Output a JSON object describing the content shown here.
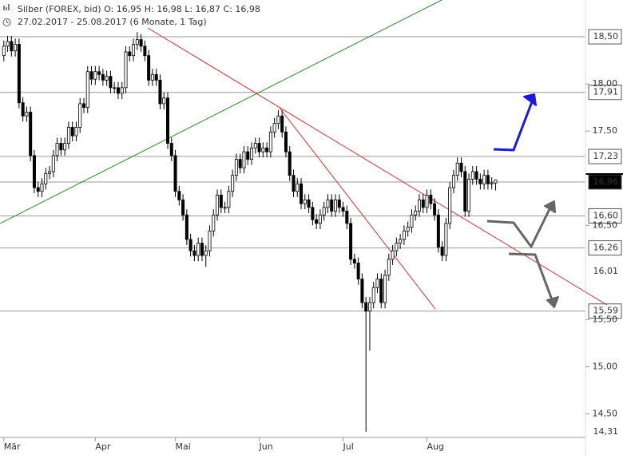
{
  "chart_data": {
    "type": "candlestick",
    "header": {
      "title": "Silber (FOREX, bid)  O: 16,95  H: 16,98  L: 16,87  C: 16,98",
      "period": "27.02.2017 - 25.08.2017   (6 Monate, 1 Tag)"
    },
    "xlim": [
      -1,
      131
    ],
    "ylim": [
      14.25,
      18.89
    ],
    "xticks": [
      {
        "value": 0,
        "label": "Mär"
      },
      {
        "value": 24,
        "label": "Apr"
      },
      {
        "value": 45,
        "label": "Mai"
      },
      {
        "value": 67,
        "label": "Jun"
      },
      {
        "value": 89,
        "label": "Jul"
      },
      {
        "value": 111,
        "label": "Aug"
      }
    ],
    "yticks": [
      {
        "value": 18,
        "label": "18,00"
      },
      {
        "value": 17.5,
        "label": "17,50"
      },
      {
        "value": 16.5,
        "label": "16,50"
      },
      {
        "value": 15.5,
        "label": "15,50"
      },
      {
        "value": 15,
        "label": "15,00"
      },
      {
        "value": 14.5,
        "label": "14,50"
      }
    ],
    "levels": [
      {
        "value": 18.5,
        "label": "18,50",
        "line": true
      },
      {
        "value": 17.91,
        "label": "17,91",
        "line": true
      },
      {
        "value": 17.23,
        "label": "17,23",
        "line": true
      },
      {
        "value": 16.96,
        "label": "16,96",
        "line": true,
        "highlight": true
      },
      {
        "value": 16.6,
        "label": "16,60",
        "line": true
      },
      {
        "value": 16.26,
        "label": "16,26",
        "line": true
      },
      {
        "value": 16.01,
        "label": "16,01",
        "line": false
      },
      {
        "value": 15.59,
        "label": "15,59",
        "line": true
      },
      {
        "value": 14.31,
        "label": "14,31",
        "line": false
      }
    ],
    "up_color": "#ffffff",
    "down_color": "#000000",
    "wick_color": "#000000",
    "open": [
      18.3,
      18.4,
      18.45,
      18.35,
      18.42,
      17.8,
      17.66,
      17.7,
      17.24,
      16.9,
      16.86,
      16.94,
      17.05,
      17.07,
      17.24,
      17.37,
      17.3,
      17.37,
      17.54,
      17.45,
      17.54,
      17.79,
      17.75,
      18.13,
      18.05,
      18.13,
      18.1,
      18.04,
      18.08,
      17.96,
      17.96,
      17.9,
      17.96,
      18.34,
      18.3,
      18.42,
      18.47,
      18.4,
      18.3,
      18.04,
      18.1,
      18.04,
      17.79,
      17.85,
      17.37,
      17.24,
      16.86,
      16.77,
      16.61,
      16.35,
      16.23,
      16.18,
      16.31,
      16.18,
      16.23,
      16.44,
      16.61,
      16.82,
      16.69,
      16.69,
      16.86,
      17.03,
      17.2,
      17.11,
      17.28,
      17.2,
      17.32,
      17.37,
      17.28,
      17.32,
      17.28,
      17.49,
      17.58,
      17.66,
      17.49,
      17.28,
      17.03,
      16.86,
      16.94,
      16.73,
      16.77,
      16.69,
      16.56,
      16.52,
      16.61,
      16.69,
      16.77,
      16.65,
      16.77,
      16.69,
      16.65,
      16.52,
      16.14,
      16.1,
      15.93,
      15.68,
      15.59,
      15.68,
      15.84,
      15.93,
      15.68,
      15.97,
      16.14,
      16.23,
      16.31,
      16.35,
      16.44,
      16.48,
      16.61,
      16.65,
      16.77,
      16.69,
      16.82,
      16.73,
      16.61,
      16.27,
      16.18,
      16.52,
      16.9,
      17.03,
      17.16,
      17.07,
      16.65,
      16.99,
      17.07,
      16.99,
      16.94,
      17.03,
      16.94,
      16.95
    ],
    "high": [
      18.46,
      18.51,
      18.51,
      18.48,
      18.48,
      17.86,
      17.76,
      17.76,
      17.3,
      16.96,
      17.0,
      17.11,
      17.13,
      17.3,
      17.43,
      17.43,
      17.43,
      17.6,
      17.6,
      17.6,
      17.85,
      17.85,
      18.19,
      18.19,
      18.19,
      18.19,
      18.16,
      18.14,
      18.14,
      18.02,
      18.02,
      18.02,
      18.4,
      18.4,
      18.48,
      18.55,
      18.53,
      18.46,
      18.36,
      18.16,
      18.16,
      18.1,
      17.91,
      17.91,
      17.43,
      17.3,
      16.92,
      16.83,
      16.67,
      16.41,
      16.29,
      16.37,
      16.37,
      16.29,
      16.5,
      16.67,
      16.88,
      16.88,
      16.75,
      16.92,
      17.09,
      17.26,
      17.26,
      17.34,
      17.34,
      17.38,
      17.43,
      17.43,
      17.38,
      17.38,
      17.55,
      17.64,
      17.72,
      17.72,
      17.55,
      17.34,
      17.09,
      17.0,
      17.0,
      16.83,
      16.83,
      16.75,
      16.62,
      16.67,
      16.75,
      16.83,
      16.83,
      16.83,
      16.83,
      16.75,
      16.71,
      16.58,
      16.2,
      16.16,
      15.99,
      15.74,
      15.74,
      15.9,
      15.99,
      15.99,
      16.03,
      16.2,
      16.29,
      16.37,
      16.41,
      16.5,
      16.54,
      16.67,
      16.71,
      16.83,
      16.83,
      16.88,
      16.88,
      16.79,
      16.67,
      16.33,
      16.58,
      16.96,
      17.09,
      17.22,
      17.22,
      17.13,
      17.05,
      17.13,
      17.13,
      17.05,
      17.09,
      17.09,
      17.01,
      16.98
    ],
    "low": [
      18.24,
      18.34,
      18.29,
      18.29,
      17.74,
      17.6,
      17.6,
      17.18,
      16.84,
      16.8,
      16.8,
      16.88,
      16.99,
      17.01,
      17.18,
      17.24,
      17.24,
      17.31,
      17.39,
      17.39,
      17.48,
      17.69,
      17.69,
      17.99,
      17.99,
      18.04,
      17.98,
      17.98,
      17.9,
      17.9,
      17.84,
      17.84,
      17.9,
      18.24,
      18.24,
      18.36,
      18.34,
      18.24,
      17.98,
      17.98,
      17.98,
      17.73,
      17.73,
      17.31,
      17.18,
      16.8,
      16.71,
      16.55,
      16.29,
      16.17,
      16.12,
      16.12,
      16.12,
      16.06,
      16.17,
      16.38,
      16.55,
      16.63,
      16.63,
      16.63,
      16.8,
      16.97,
      17.05,
      17.05,
      17.14,
      17.14,
      17.26,
      17.22,
      17.22,
      17.22,
      17.22,
      17.43,
      17.52,
      17.43,
      17.22,
      16.97,
      16.8,
      16.8,
      16.67,
      16.67,
      16.63,
      16.5,
      16.46,
      16.46,
      16.55,
      16.63,
      16.59,
      16.59,
      16.63,
      16.59,
      16.46,
      16.08,
      16.04,
      15.87,
      15.62,
      14.31,
      15.17,
      15.62,
      15.78,
      15.62,
      15.62,
      15.91,
      16.08,
      16.17,
      16.25,
      16.29,
      16.38,
      16.42,
      16.55,
      16.59,
      16.63,
      16.63,
      16.67,
      16.55,
      16.21,
      16.12,
      16.12,
      16.46,
      16.84,
      16.97,
      17.01,
      16.59,
      16.59,
      16.93,
      16.93,
      16.88,
      16.88,
      16.88,
      16.88,
      16.87
    ],
    "close": [
      18.4,
      18.45,
      18.35,
      18.42,
      17.8,
      17.66,
      17.7,
      17.24,
      16.9,
      16.86,
      16.94,
      17.05,
      17.07,
      17.24,
      17.37,
      17.3,
      17.37,
      17.54,
      17.45,
      17.54,
      17.79,
      17.75,
      18.13,
      18.05,
      18.13,
      18.1,
      18.04,
      18.08,
      17.96,
      17.96,
      17.9,
      17.96,
      18.34,
      18.3,
      18.42,
      18.47,
      18.4,
      18.3,
      18.04,
      18.1,
      18.04,
      17.79,
      17.85,
      17.37,
      17.24,
      16.86,
      16.77,
      16.61,
      16.35,
      16.23,
      16.18,
      16.31,
      16.18,
      16.23,
      16.44,
      16.61,
      16.82,
      16.69,
      16.69,
      16.86,
      17.03,
      17.2,
      17.11,
      17.28,
      17.2,
      17.32,
      17.37,
      17.28,
      17.32,
      17.28,
      17.49,
      17.58,
      17.66,
      17.49,
      17.28,
      17.03,
      16.86,
      16.94,
      16.73,
      16.77,
      16.69,
      16.56,
      16.52,
      16.61,
      16.69,
      16.77,
      16.65,
      16.77,
      16.69,
      16.65,
      16.52,
      16.14,
      16.1,
      15.93,
      15.68,
      15.59,
      15.68,
      15.84,
      15.93,
      15.68,
      15.97,
      16.14,
      16.23,
      16.31,
      16.35,
      16.44,
      16.48,
      16.61,
      16.65,
      16.77,
      16.69,
      16.82,
      16.73,
      16.61,
      16.27,
      16.18,
      16.52,
      16.9,
      17.03,
      17.16,
      17.07,
      16.65,
      16.99,
      17.07,
      16.99,
      16.94,
      17.03,
      16.94,
      16.95,
      16.98
    ]
  }
}
